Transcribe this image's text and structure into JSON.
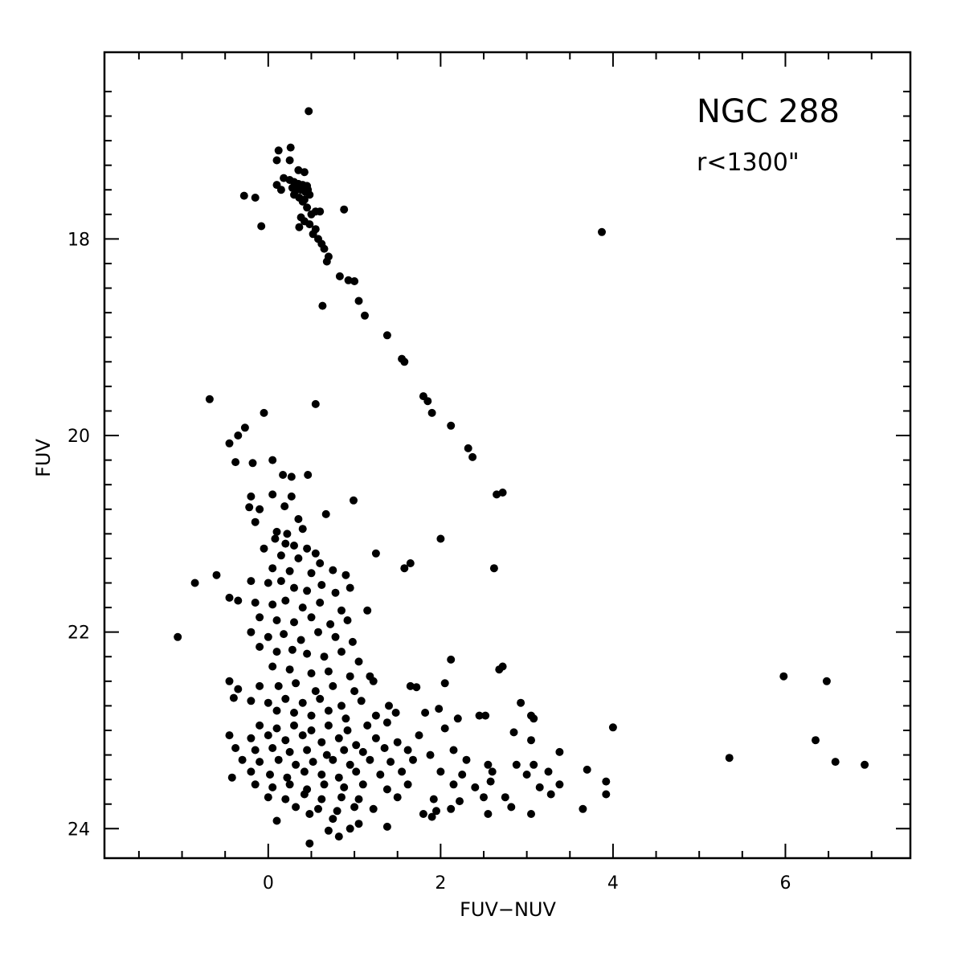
{
  "chart_data": {
    "type": "scatter",
    "title": "NGC 288",
    "subtitle": "r<1300\"",
    "xlabel": "FUV−NUV",
    "ylabel": "FUV",
    "xlim": [
      -1.9,
      7.45
    ],
    "ylim": [
      24.3,
      16.1
    ],
    "y_inverted": true,
    "grid": false,
    "legend": "none",
    "x_ticks": [
      0,
      2,
      4,
      6
    ],
    "y_ticks": [
      18,
      20,
      22,
      24
    ],
    "marker_color": "#000000",
    "points": [
      [
        0.47,
        16.7
      ],
      [
        0.12,
        17.1
      ],
      [
        0.26,
        17.07
      ],
      [
        0.1,
        17.2
      ],
      [
        0.25,
        17.2
      ],
      [
        0.35,
        17.3
      ],
      [
        0.42,
        17.32
      ],
      [
        0.18,
        17.38
      ],
      [
        0.25,
        17.4
      ],
      [
        0.3,
        17.42
      ],
      [
        0.35,
        17.44
      ],
      [
        0.4,
        17.45
      ],
      [
        0.45,
        17.46
      ],
      [
        0.28,
        17.48
      ],
      [
        0.33,
        17.5
      ],
      [
        0.38,
        17.5
      ],
      [
        0.43,
        17.52
      ],
      [
        0.48,
        17.55
      ],
      [
        0.3,
        17.55
      ],
      [
        0.36,
        17.58
      ],
      [
        0.42,
        17.6
      ],
      [
        0.1,
        17.45
      ],
      [
        0.15,
        17.5
      ],
      [
        0.46,
        17.5
      ],
      [
        -0.28,
        17.56
      ],
      [
        -0.15,
        17.58
      ],
      [
        0.55,
        17.72
      ],
      [
        0.6,
        17.72
      ],
      [
        0.4,
        17.62
      ],
      [
        0.45,
        17.68
      ],
      [
        0.5,
        17.75
      ],
      [
        0.38,
        17.78
      ],
      [
        0.42,
        17.82
      ],
      [
        0.48,
        17.85
      ],
      [
        0.36,
        17.88
      ],
      [
        0.55,
        17.9
      ],
      [
        0.52,
        17.95
      ],
      [
        0.58,
        18.0
      ],
      [
        0.62,
        18.05
      ],
      [
        0.65,
        18.1
      ],
      [
        0.7,
        18.18
      ],
      [
        0.68,
        18.23
      ],
      [
        0.88,
        17.7
      ],
      [
        -0.08,
        17.87
      ],
      [
        3.87,
        17.93
      ],
      [
        0.83,
        18.38
      ],
      [
        0.93,
        18.42
      ],
      [
        1.0,
        18.43
      ],
      [
        0.63,
        18.68
      ],
      [
        1.05,
        18.63
      ],
      [
        1.12,
        18.78
      ],
      [
        1.38,
        18.98
      ],
      [
        1.55,
        19.22
      ],
      [
        1.58,
        19.25
      ],
      [
        1.8,
        19.6
      ],
      [
        1.85,
        19.65
      ],
      [
        1.9,
        19.77
      ],
      [
        -0.68,
        19.63
      ],
      [
        -0.05,
        19.77
      ],
      [
        0.55,
        19.68
      ],
      [
        2.12,
        19.9
      ],
      [
        2.32,
        20.13
      ],
      [
        2.37,
        20.22
      ],
      [
        2.65,
        20.6
      ],
      [
        2.72,
        20.58
      ],
      [
        -0.27,
        19.92
      ],
      [
        -0.35,
        20.0
      ],
      [
        -0.45,
        20.08
      ],
      [
        -0.38,
        20.27
      ],
      [
        -0.18,
        20.28
      ],
      [
        0.05,
        20.25
      ],
      [
        0.17,
        20.4
      ],
      [
        0.27,
        20.42
      ],
      [
        0.46,
        20.4
      ],
      [
        0.05,
        20.6
      ],
      [
        0.27,
        20.62
      ],
      [
        0.99,
        20.66
      ],
      [
        -0.2,
        20.62
      ],
      [
        0.19,
        20.72
      ],
      [
        -0.22,
        20.73
      ],
      [
        -0.1,
        20.75
      ],
      [
        0.35,
        20.85
      ],
      [
        0.67,
        20.8
      ],
      [
        -0.15,
        20.88
      ],
      [
        0.1,
        20.98
      ],
      [
        0.22,
        21.0
      ],
      [
        0.4,
        20.95
      ],
      [
        2.0,
        21.05
      ],
      [
        0.08,
        21.05
      ],
      [
        0.2,
        21.1
      ],
      [
        0.3,
        21.12
      ],
      [
        0.45,
        21.15
      ],
      [
        -0.05,
        21.15
      ],
      [
        0.15,
        21.22
      ],
      [
        0.35,
        21.25
      ],
      [
        0.55,
        21.2
      ],
      [
        0.6,
        21.3
      ],
      [
        1.25,
        21.2
      ],
      [
        0.05,
        21.35
      ],
      [
        0.25,
        21.38
      ],
      [
        0.5,
        21.4
      ],
      [
        0.75,
        21.37
      ],
      [
        0.9,
        21.42
      ],
      [
        1.58,
        21.35
      ],
      [
        1.65,
        21.3
      ],
      [
        2.62,
        21.35
      ],
      [
        -0.85,
        21.5
      ],
      [
        -0.6,
        21.42
      ],
      [
        -0.2,
        21.48
      ],
      [
        0.0,
        21.5
      ],
      [
        0.15,
        21.48
      ],
      [
        0.3,
        21.55
      ],
      [
        0.45,
        21.58
      ],
      [
        0.62,
        21.52
      ],
      [
        0.78,
        21.6
      ],
      [
        0.95,
        21.55
      ],
      [
        -0.45,
        21.65
      ],
      [
        -0.35,
        21.68
      ],
      [
        -0.15,
        21.7
      ],
      [
        0.05,
        21.72
      ],
      [
        0.2,
        21.68
      ],
      [
        0.4,
        21.75
      ],
      [
        0.6,
        21.7
      ],
      [
        0.85,
        21.78
      ],
      [
        1.15,
        21.78
      ],
      [
        -0.1,
        21.85
      ],
      [
        0.1,
        21.88
      ],
      [
        0.3,
        21.9
      ],
      [
        0.5,
        21.85
      ],
      [
        0.72,
        21.92
      ],
      [
        0.92,
        21.88
      ],
      [
        -1.05,
        22.05
      ],
      [
        -0.2,
        22.0
      ],
      [
        0.0,
        22.05
      ],
      [
        0.18,
        22.02
      ],
      [
        0.38,
        22.08
      ],
      [
        0.58,
        22.0
      ],
      [
        0.78,
        22.05
      ],
      [
        0.98,
        22.1
      ],
      [
        -0.1,
        22.15
      ],
      [
        0.1,
        22.2
      ],
      [
        0.28,
        22.18
      ],
      [
        0.45,
        22.22
      ],
      [
        0.65,
        22.25
      ],
      [
        0.85,
        22.2
      ],
      [
        1.05,
        22.3
      ],
      [
        2.12,
        22.28
      ],
      [
        2.72,
        22.35
      ],
      [
        2.68,
        22.38
      ],
      [
        0.05,
        22.35
      ],
      [
        0.25,
        22.38
      ],
      [
        0.5,
        22.42
      ],
      [
        0.7,
        22.4
      ],
      [
        0.95,
        22.45
      ],
      [
        1.18,
        22.45
      ],
      [
        1.22,
        22.5
      ],
      [
        -0.45,
        22.5
      ],
      [
        -0.35,
        22.58
      ],
      [
        -0.1,
        22.55
      ],
      [
        0.12,
        22.55
      ],
      [
        0.32,
        22.52
      ],
      [
        0.55,
        22.6
      ],
      [
        0.75,
        22.55
      ],
      [
        1.0,
        22.6
      ],
      [
        1.65,
        22.55
      ],
      [
        1.72,
        22.56
      ],
      [
        2.05,
        22.52
      ],
      [
        5.98,
        22.45
      ],
      [
        6.48,
        22.5
      ],
      [
        -0.4,
        22.67
      ],
      [
        -0.2,
        22.7
      ],
      [
        0.0,
        22.72
      ],
      [
        0.2,
        22.68
      ],
      [
        0.4,
        22.72
      ],
      [
        0.6,
        22.68
      ],
      [
        0.85,
        22.75
      ],
      [
        1.08,
        22.7
      ],
      [
        1.4,
        22.75
      ],
      [
        2.93,
        22.72
      ],
      [
        0.1,
        22.8
      ],
      [
        0.3,
        22.82
      ],
      [
        0.5,
        22.85
      ],
      [
        0.7,
        22.8
      ],
      [
        0.9,
        22.88
      ],
      [
        1.25,
        22.85
      ],
      [
        1.48,
        22.82
      ],
      [
        1.82,
        22.82
      ],
      [
        1.98,
        22.78
      ],
      [
        2.2,
        22.88
      ],
      [
        2.45,
        22.85
      ],
      [
        2.52,
        22.85
      ],
      [
        3.05,
        22.85
      ],
      [
        3.08,
        22.88
      ],
      [
        -0.1,
        22.95
      ],
      [
        0.1,
        22.98
      ],
      [
        0.3,
        22.95
      ],
      [
        0.5,
        23.0
      ],
      [
        0.7,
        22.95
      ],
      [
        0.92,
        23.0
      ],
      [
        1.15,
        22.95
      ],
      [
        1.38,
        22.92
      ],
      [
        2.05,
        22.98
      ],
      [
        4.0,
        22.97
      ],
      [
        -0.45,
        23.05
      ],
      [
        -0.2,
        23.08
      ],
      [
        0.0,
        23.05
      ],
      [
        0.2,
        23.1
      ],
      [
        0.4,
        23.05
      ],
      [
        0.62,
        23.12
      ],
      [
        0.82,
        23.08
      ],
      [
        1.02,
        23.15
      ],
      [
        1.25,
        23.08
      ],
      [
        1.5,
        23.12
      ],
      [
        1.75,
        23.05
      ],
      [
        2.85,
        23.02
      ],
      [
        3.05,
        23.1
      ],
      [
        6.35,
        23.1
      ],
      [
        -0.38,
        23.18
      ],
      [
        -0.15,
        23.2
      ],
      [
        0.05,
        23.18
      ],
      [
        0.25,
        23.22
      ],
      [
        0.45,
        23.2
      ],
      [
        0.68,
        23.25
      ],
      [
        0.88,
        23.2
      ],
      [
        1.1,
        23.22
      ],
      [
        1.35,
        23.18
      ],
      [
        1.62,
        23.2
      ],
      [
        1.88,
        23.25
      ],
      [
        2.15,
        23.2
      ],
      [
        3.38,
        23.22
      ],
      [
        -0.3,
        23.3
      ],
      [
        -0.1,
        23.32
      ],
      [
        0.12,
        23.3
      ],
      [
        0.32,
        23.35
      ],
      [
        0.52,
        23.32
      ],
      [
        0.75,
        23.3
      ],
      [
        0.95,
        23.35
      ],
      [
        1.18,
        23.3
      ],
      [
        1.42,
        23.32
      ],
      [
        1.68,
        23.3
      ],
      [
        2.3,
        23.3
      ],
      [
        2.55,
        23.35
      ],
      [
        2.88,
        23.35
      ],
      [
        3.08,
        23.35
      ],
      [
        5.35,
        23.28
      ],
      [
        6.58,
        23.32
      ],
      [
        6.92,
        23.35
      ],
      [
        -0.42,
        23.48
      ],
      [
        -0.2,
        23.42
      ],
      [
        0.02,
        23.45
      ],
      [
        0.22,
        23.48
      ],
      [
        0.42,
        23.42
      ],
      [
        0.62,
        23.45
      ],
      [
        0.82,
        23.48
      ],
      [
        1.02,
        23.42
      ],
      [
        1.3,
        23.45
      ],
      [
        1.55,
        23.42
      ],
      [
        2.0,
        23.42
      ],
      [
        2.25,
        23.45
      ],
      [
        2.6,
        23.42
      ],
      [
        3.0,
        23.45
      ],
      [
        3.25,
        23.42
      ],
      [
        3.7,
        23.4
      ],
      [
        -0.15,
        23.55
      ],
      [
        0.05,
        23.58
      ],
      [
        0.25,
        23.55
      ],
      [
        0.45,
        23.6
      ],
      [
        0.65,
        23.55
      ],
      [
        0.88,
        23.58
      ],
      [
        1.1,
        23.55
      ],
      [
        1.38,
        23.6
      ],
      [
        1.62,
        23.55
      ],
      [
        2.15,
        23.55
      ],
      [
        2.4,
        23.58
      ],
      [
        2.58,
        23.52
      ],
      [
        3.15,
        23.58
      ],
      [
        3.38,
        23.55
      ],
      [
        3.92,
        23.52
      ],
      [
        0.0,
        23.68
      ],
      [
        0.2,
        23.7
      ],
      [
        0.42,
        23.65
      ],
      [
        0.62,
        23.7
      ],
      [
        0.85,
        23.68
      ],
      [
        1.05,
        23.7
      ],
      [
        1.5,
        23.68
      ],
      [
        1.92,
        23.7
      ],
      [
        2.22,
        23.72
      ],
      [
        2.5,
        23.68
      ],
      [
        2.75,
        23.68
      ],
      [
        3.28,
        23.65
      ],
      [
        3.92,
        23.65
      ],
      [
        0.32,
        23.78
      ],
      [
        0.58,
        23.8
      ],
      [
        0.8,
        23.82
      ],
      [
        1.0,
        23.78
      ],
      [
        1.22,
        23.8
      ],
      [
        1.8,
        23.85
      ],
      [
        1.95,
        23.82
      ],
      [
        2.12,
        23.8
      ],
      [
        2.55,
        23.85
      ],
      [
        2.82,
        23.78
      ],
      [
        3.05,
        23.85
      ],
      [
        3.65,
        23.8
      ],
      [
        0.1,
        23.92
      ],
      [
        0.48,
        23.85
      ],
      [
        0.75,
        23.9
      ],
      [
        1.05,
        23.95
      ],
      [
        1.38,
        23.98
      ],
      [
        1.9,
        23.88
      ],
      [
        0.7,
        24.02
      ],
      [
        0.95,
        24.0
      ],
      [
        0.82,
        24.08
      ],
      [
        0.48,
        24.15
      ]
    ]
  }
}
